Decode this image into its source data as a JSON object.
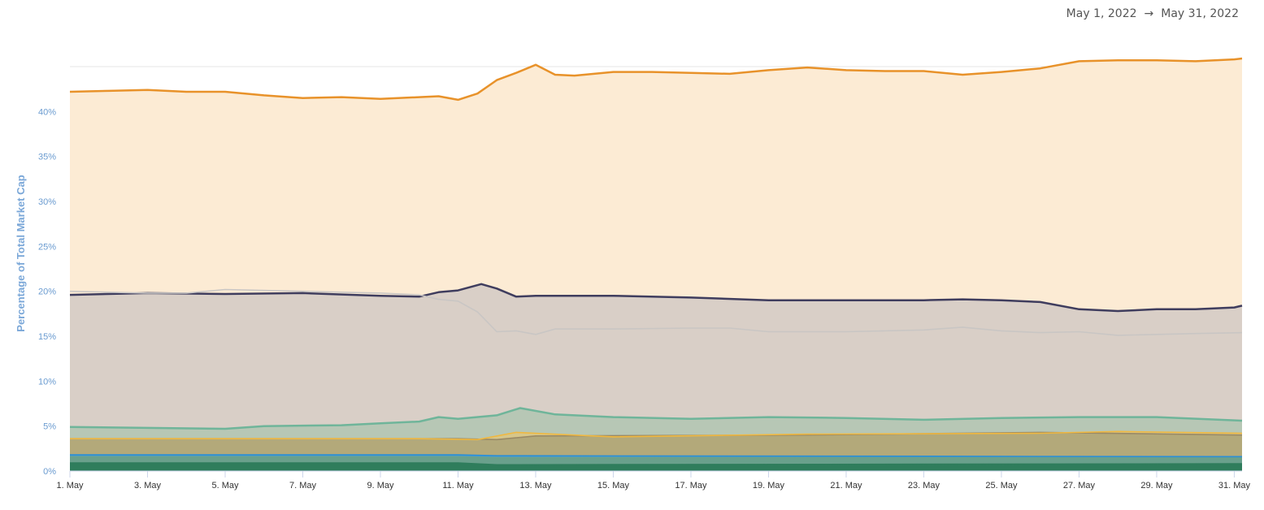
{
  "header": {
    "start_date": "May 1, 2022",
    "arrow": "→",
    "end_date": "May 31, 2022"
  },
  "chart_data": {
    "type": "area",
    "stacked": true,
    "ylabel": "Percentage of Total Market Cap",
    "xlabel": "",
    "ylim": [
      0,
      45
    ],
    "xlim": [
      1,
      31.2
    ],
    "y_ticks": [
      0,
      5,
      10,
      15,
      20,
      25,
      30,
      35,
      40
    ],
    "y_tick_labels": [
      "0%",
      "5%",
      "10%",
      "15%",
      "20%",
      "25%",
      "30%",
      "35%",
      "40%"
    ],
    "x_ticks": [
      1,
      3,
      5,
      7,
      9,
      11,
      13,
      15,
      17,
      19,
      21,
      23,
      25,
      27,
      29,
      31
    ],
    "x_tick_labels": [
      "1. May",
      "3. May",
      "5. May",
      "7. May",
      "9. May",
      "11. May",
      "13. May",
      "15. May",
      "17. May",
      "19. May",
      "21. May",
      "23. May",
      "25. May",
      "27. May",
      "29. May",
      "31. May"
    ],
    "grid": true,
    "legend": "none",
    "series": [
      {
        "color": "#2f7d5c",
        "fill": "#2f7d5c",
        "points": [
          [
            1,
            0.9
          ],
          [
            11,
            0.9
          ],
          [
            12,
            0.7
          ],
          [
            31.2,
            0.8
          ]
        ]
      },
      {
        "color": "#6aa08c",
        "fill": "#6aa08c",
        "points": [
          [
            1,
            1.6
          ],
          [
            11,
            1.6
          ],
          [
            12,
            1.5
          ],
          [
            31.2,
            1.5
          ]
        ]
      },
      {
        "color": "#2b8fd6",
        "fill": "#4a9fd8",
        "points": [
          [
            1,
            1.8
          ],
          [
            11,
            1.8
          ],
          [
            12,
            1.7
          ],
          [
            31.2,
            1.6
          ]
        ]
      },
      {
        "color": "#9a8a66",
        "fill": "#b3a97a",
        "points": [
          [
            1,
            3.6
          ],
          [
            6,
            3.6
          ],
          [
            11,
            3.6
          ],
          [
            12,
            3.5
          ],
          [
            13,
            3.9
          ],
          [
            20,
            4.0
          ],
          [
            26,
            4.3
          ],
          [
            31.2,
            4.0
          ]
        ]
      },
      {
        "color": "#f0b840",
        "fill": "#d6c68a",
        "points": [
          [
            1,
            3.6
          ],
          [
            5,
            3.6
          ],
          [
            10,
            3.6
          ],
          [
            11.5,
            3.5
          ],
          [
            12.5,
            4.3
          ],
          [
            15,
            3.8
          ],
          [
            20,
            4.1
          ],
          [
            26,
            4.2
          ],
          [
            28,
            4.4
          ],
          [
            31.2,
            4.2
          ]
        ]
      },
      {
        "color": "#6fb59a",
        "fill": "#b7c7b5",
        "points": [
          [
            1,
            4.9
          ],
          [
            3,
            4.8
          ],
          [
            5,
            4.7
          ],
          [
            6,
            5.0
          ],
          [
            8,
            5.1
          ],
          [
            9,
            5.3
          ],
          [
            10,
            5.5
          ],
          [
            10.5,
            6.0
          ],
          [
            11,
            5.8
          ],
          [
            12,
            6.2
          ],
          [
            12.6,
            7.0
          ],
          [
            13.5,
            6.3
          ],
          [
            15,
            6.0
          ],
          [
            17,
            5.8
          ],
          [
            19,
            6.0
          ],
          [
            21,
            5.9
          ],
          [
            23,
            5.7
          ],
          [
            25,
            5.9
          ],
          [
            27,
            6.0
          ],
          [
            29,
            6.0
          ],
          [
            31.2,
            5.6
          ]
        ]
      },
      {
        "color": "#3f3d5e",
        "fill": "#d9cfc7",
        "points": [
          [
            1,
            19.6
          ],
          [
            3,
            19.8
          ],
          [
            5,
            19.7
          ],
          [
            7,
            19.8
          ],
          [
            9,
            19.5
          ],
          [
            10,
            19.4
          ],
          [
            10.5,
            19.9
          ],
          [
            11,
            20.1
          ],
          [
            11.6,
            20.8
          ],
          [
            12,
            20.3
          ],
          [
            12.5,
            19.4
          ],
          [
            13,
            19.5
          ],
          [
            15,
            19.5
          ],
          [
            17,
            19.3
          ],
          [
            19,
            19.0
          ],
          [
            21,
            19.0
          ],
          [
            23,
            19.0
          ],
          [
            24,
            19.1
          ],
          [
            25,
            19.0
          ],
          [
            26,
            18.8
          ],
          [
            27,
            18.0
          ],
          [
            28,
            17.8
          ],
          [
            29,
            18.0
          ],
          [
            30,
            18.0
          ],
          [
            31,
            18.2
          ],
          [
            31.2,
            18.4
          ]
        ]
      },
      {
        "color": "#e8922a",
        "fill": "#fcebd4",
        "points": [
          [
            1,
            42.2
          ],
          [
            2,
            42.3
          ],
          [
            3,
            42.4
          ],
          [
            4,
            42.2
          ],
          [
            5,
            42.2
          ],
          [
            6,
            41.8
          ],
          [
            7,
            41.5
          ],
          [
            8,
            41.6
          ],
          [
            9,
            41.4
          ],
          [
            10,
            41.6
          ],
          [
            10.5,
            41.7
          ],
          [
            11,
            41.3
          ],
          [
            11.5,
            42.0
          ],
          [
            12,
            43.5
          ],
          [
            12.5,
            44.3
          ],
          [
            13,
            45.2
          ],
          [
            13.5,
            44.1
          ],
          [
            14,
            44.0
          ],
          [
            15,
            44.4
          ],
          [
            16,
            44.4
          ],
          [
            17,
            44.3
          ],
          [
            18,
            44.2
          ],
          [
            19,
            44.6
          ],
          [
            20,
            44.9
          ],
          [
            21,
            44.6
          ],
          [
            22,
            44.5
          ],
          [
            23,
            44.5
          ],
          [
            24,
            44.1
          ],
          [
            25,
            44.4
          ],
          [
            26,
            44.8
          ],
          [
            27,
            45.6
          ],
          [
            28,
            45.7
          ],
          [
            29,
            45.7
          ],
          [
            30,
            45.6
          ],
          [
            31,
            45.8
          ],
          [
            31.2,
            45.9
          ]
        ]
      },
      {
        "color": "#c9c6c4",
        "fill": "none",
        "points": [
          [
            1,
            20.0
          ],
          [
            3,
            19.8
          ],
          [
            4,
            19.8
          ],
          [
            5,
            20.2
          ],
          [
            7,
            20.0
          ],
          [
            9,
            19.8
          ],
          [
            10,
            19.6
          ],
          [
            10.5,
            19.1
          ],
          [
            11,
            18.9
          ],
          [
            11.5,
            17.7
          ],
          [
            12,
            15.5
          ],
          [
            12.5,
            15.6
          ],
          [
            13,
            15.2
          ],
          [
            13.5,
            15.8
          ],
          [
            15,
            15.8
          ],
          [
            17,
            15.9
          ],
          [
            18,
            15.9
          ],
          [
            19,
            15.5
          ],
          [
            21,
            15.5
          ],
          [
            23,
            15.7
          ],
          [
            24,
            16.0
          ],
          [
            25,
            15.6
          ],
          [
            26,
            15.4
          ],
          [
            27,
            15.5
          ],
          [
            28,
            15.1
          ],
          [
            30,
            15.3
          ],
          [
            31.2,
            15.4
          ]
        ]
      }
    ]
  }
}
